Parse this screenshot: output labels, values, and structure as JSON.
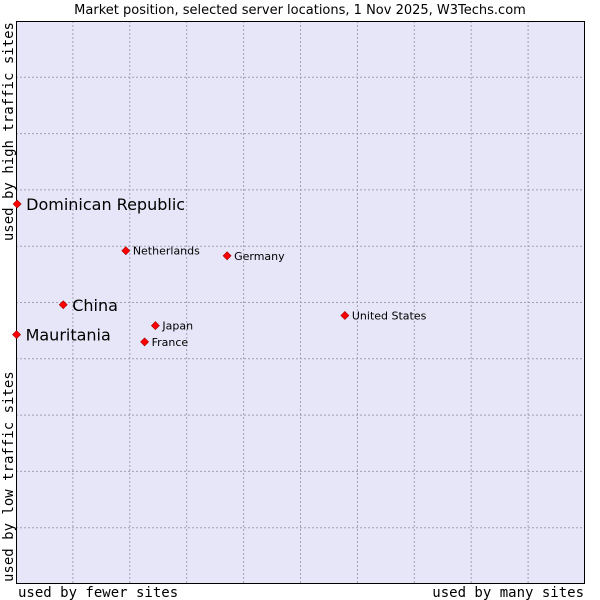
{
  "chart_data": {
    "type": "scatter",
    "title": "Market position, selected server locations, 1 Nov 2025, W3Techs.com",
    "xlabel_left": "used by fewer sites",
    "xlabel_right": "used by many sites",
    "ylabel_bottom": "used by low traffic sites",
    "ylabel_top": "used by high traffic sites",
    "xlim": [
      0,
      100
    ],
    "ylim": [
      0,
      100
    ],
    "grid": true,
    "colors": {
      "plot_background": "#e6e6f8",
      "grid": "#a0a0b4",
      "marker": "#ff0000",
      "marker_border": "#a00000"
    },
    "points": [
      {
        "label": "Dominican Republic",
        "x": 0.2,
        "y": 67.5,
        "emphasis": true
      },
      {
        "label": "China",
        "x": 8.3,
        "y": 49.6,
        "emphasis": true
      },
      {
        "label": "Mauritania",
        "x": 0.1,
        "y": 44.3,
        "emphasis": true
      },
      {
        "label": "Netherlands",
        "x": 19.3,
        "y": 59.2,
        "emphasis": false
      },
      {
        "label": "Germany",
        "x": 37.1,
        "y": 58.3,
        "emphasis": false
      },
      {
        "label": "United States",
        "x": 57.8,
        "y": 47.7,
        "emphasis": false
      },
      {
        "label": "Japan",
        "x": 24.5,
        "y": 45.9,
        "emphasis": false
      },
      {
        "label": "France",
        "x": 22.6,
        "y": 43.0,
        "emphasis": false
      }
    ]
  }
}
